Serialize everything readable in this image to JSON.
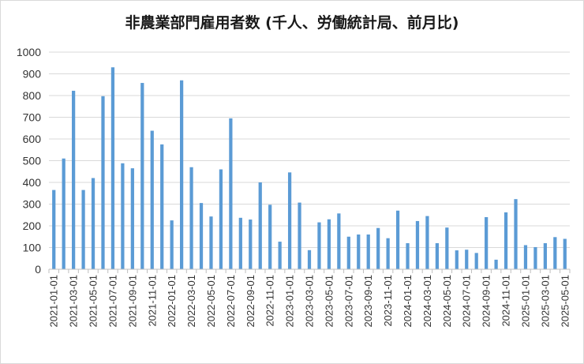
{
  "chart_data": {
    "type": "bar",
    "title": "非農業部門雇用者数 (千人、労働統計局、前月比)",
    "xlabel": "",
    "ylabel": "",
    "ylim": [
      0,
      1000
    ],
    "yticks": [
      0,
      100,
      200,
      300,
      400,
      500,
      600,
      700,
      800,
      900,
      1000
    ],
    "grid": true,
    "bar_color": "#5b9bd5",
    "categories": [
      "2021-01-01",
      "2021-02-01",
      "2021-03-01",
      "2021-04-01",
      "2021-05-01",
      "2021-06-01",
      "2021-07-01",
      "2021-08-01",
      "2021-09-01",
      "2021-10-01",
      "2021-11-01",
      "2021-12-01",
      "2022-01-01",
      "2022-02-01",
      "2022-03-01",
      "2022-04-01",
      "2022-05-01",
      "2022-06-01",
      "2022-07-01",
      "2022-08-01",
      "2022-09-01",
      "2022-10-01",
      "2022-11-01",
      "2022-12-01",
      "2023-01-01",
      "2023-02-01",
      "2023-03-01",
      "2023-04-01",
      "2023-05-01",
      "2023-06-01",
      "2023-07-01",
      "2023-08-01",
      "2023-09-01",
      "2023-10-01",
      "2023-11-01",
      "2023-12-01",
      "2024-01-01",
      "2024-02-01",
      "2024-03-01",
      "2024-04-01",
      "2024-05-01",
      "2024-06-01",
      "2024-07-01",
      "2024-08-01",
      "2024-09-01",
      "2024-10-01",
      "2024-11-01",
      "2024-12-01",
      "2025-01-01",
      "2025-02-01",
      "2025-03-01",
      "2025-04-01",
      "2025-05-01"
    ],
    "tick_labels": [
      "2021-01-01",
      "2021-03-01",
      "2021-05-01",
      "2021-07-01",
      "2021-09-01",
      "2021-11-01",
      "2022-01-01",
      "2022-03-01",
      "2022-05-01",
      "2022-07-01",
      "2022-09-01",
      "2022-11-01",
      "2023-01-01",
      "2023-03-01",
      "2023-05-01",
      "2023-07-01",
      "2023-09-01",
      "2023-11-01",
      "2024-01-01",
      "2024-03-01",
      "2024-05-01",
      "2024-07-01",
      "2024-09-01",
      "2024-11-01",
      "2025-01-01",
      "2025-03-01",
      "2025-05-01"
    ],
    "values": [
      365,
      510,
      822,
      365,
      420,
      797,
      930,
      488,
      465,
      858,
      638,
      575,
      225,
      870,
      470,
      305,
      243,
      460,
      695,
      237,
      229,
      400,
      297,
      127,
      446,
      307,
      88,
      216,
      230,
      257,
      150,
      160,
      160,
      190,
      143,
      270,
      120,
      222,
      245,
      120,
      192,
      87,
      90,
      75,
      240,
      44,
      262,
      323,
      111,
      102,
      120,
      148,
      140
    ]
  }
}
